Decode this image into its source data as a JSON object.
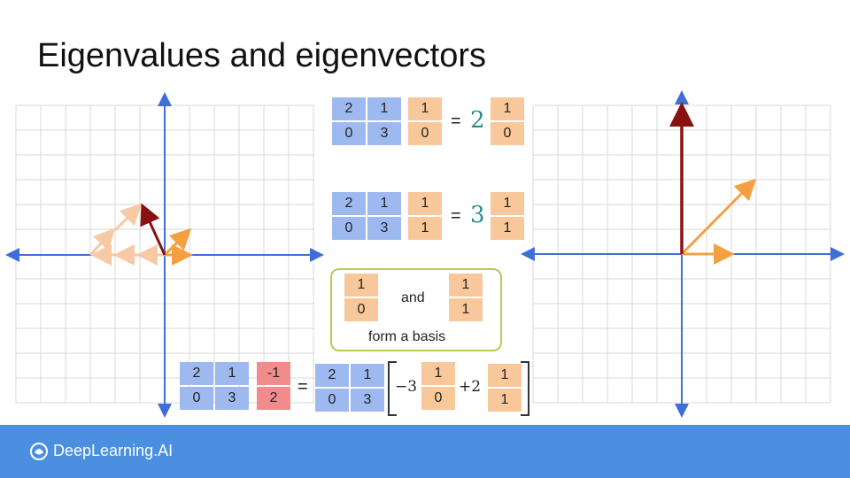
{
  "title": "Eigenvalues and eigenvectors",
  "equation1": {
    "matrix": [
      [
        "2",
        "1"
      ],
      [
        "0",
        "3"
      ]
    ],
    "vector": [
      "1",
      "0"
    ],
    "equals": "=",
    "scalar": "2",
    "result": [
      "1",
      "0"
    ]
  },
  "equation2": {
    "matrix": [
      [
        "2",
        "1"
      ],
      [
        "0",
        "3"
      ]
    ],
    "vector": [
      "1",
      "1"
    ],
    "equals": "=",
    "scalar": "3",
    "result": [
      "1",
      "1"
    ]
  },
  "basis": {
    "vector1": [
      "1",
      "0"
    ],
    "and": "and",
    "vector2": [
      "1",
      "1"
    ],
    "caption": "form a basis"
  },
  "equation3": {
    "matrix": [
      [
        "2",
        "1"
      ],
      [
        "0",
        "3"
      ]
    ],
    "vector": [
      "-1",
      "2"
    ],
    "equals": "=",
    "matrix2": [
      [
        "2",
        "1"
      ],
      [
        "0",
        "3"
      ]
    ],
    "coef1": "−3",
    "basis1": [
      "1",
      "0"
    ],
    "coef2": "+2",
    "basis2": [
      "1",
      "1"
    ]
  },
  "footer": {
    "brand": "DeepLearning.AI"
  },
  "colors": {
    "axis": "#3f6fd6",
    "grid": "#d6d6d6",
    "dark_red": "#8b1010",
    "orange": "#f5a040",
    "light_orange": "#f7c49c",
    "footer": "#4a8fe0"
  }
}
